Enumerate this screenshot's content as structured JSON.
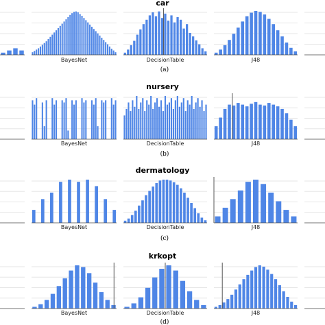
{
  "chart_data": [
    {
      "type": "bar",
      "title": "car",
      "caption": "(a)",
      "panels": [
        {
          "xlabel": "",
          "values": [
            0.05,
            0.1,
            0.15,
            0.1
          ],
          "reference_line": null,
          "partial": "left"
        },
        {
          "xlabel": "BayesNet",
          "values": [
            0.06,
            0.09,
            0.12,
            0.15,
            0.19,
            0.23,
            0.27,
            0.31,
            0.36,
            0.41,
            0.46,
            0.51,
            0.56,
            0.61,
            0.66,
            0.71,
            0.76,
            0.81,
            0.86,
            0.91,
            0.95,
            0.98,
            0.99,
            0.97,
            0.93,
            0.89,
            0.84,
            0.79,
            0.74,
            0.69,
            0.64,
            0.59,
            0.54,
            0.49,
            0.44,
            0.39,
            0.34,
            0.29,
            0.24,
            0.19,
            0.14,
            0.1,
            0.06
          ],
          "reference_line": null
        },
        {
          "xlabel": "DecisionTable",
          "values": [
            0.05,
            0.12,
            0.22,
            0.32,
            0.46,
            0.58,
            0.7,
            0.8,
            0.9,
            0.97,
            0.88,
            0.99,
            0.84,
            0.94,
            0.78,
            0.9,
            0.74,
            0.86,
            0.8,
            0.6,
            0.7,
            0.5,
            0.42,
            0.33,
            0.24,
            0.15,
            0.08
          ],
          "reference_line": 0.48
        },
        {
          "xlabel": "J48",
          "values": [
            0.05,
            0.12,
            0.22,
            0.34,
            0.48,
            0.62,
            0.76,
            0.88,
            0.96,
            1.0,
            0.98,
            0.92,
            0.82,
            0.7,
            0.56,
            0.42,
            0.28,
            0.16,
            0.08
          ],
          "reference_line": null
        },
        {
          "xlabel": "",
          "values": [],
          "reference_line": null,
          "partial": "right"
        }
      ]
    },
    {
      "type": "bar",
      "title": "nursery",
      "caption": "(b)",
      "panels": [
        {
          "xlabel": "",
          "values": [],
          "reference_line": null,
          "partial": "left"
        },
        {
          "xlabel": "BayesNet",
          "values": [
            0.9,
            0.8,
            0.95,
            0,
            0,
            0.85,
            0.3,
            0.9,
            0,
            0,
            0.95,
            0.8,
            0.9,
            0,
            0,
            0.9,
            0.85,
            0.95,
            0.2,
            0,
            0.9,
            0.8,
            0.9,
            0,
            0,
            0.95,
            0.85,
            0.9,
            0,
            0,
            0.9,
            0.8,
            0.95,
            0.3,
            0,
            0.9,
            0.85,
            0.9,
            0,
            0,
            0.95,
            0.8,
            0.9
          ],
          "reference_line": null
        },
        {
          "xlabel": "DecisionTable",
          "values": [
            0.55,
            0.7,
            0.85,
            0.65,
            0.9,
            0.75,
            1.0,
            0.7,
            0.85,
            0.95,
            0.65,
            0.9,
            0.8,
            1.0,
            0.7,
            0.85,
            0.95,
            0.75,
            0.9,
            0.65,
            1.0,
            0.8,
            0.85,
            0.95,
            0.7,
            0.9,
            1.0,
            0.75,
            0.85,
            0.95,
            0.65,
            0.9,
            0.8,
            1.0,
            0.7,
            0.85,
            0.95,
            0.75,
            0.9,
            0.65,
            0.8
          ],
          "reference_line": null
        },
        {
          "xlabel": "J48",
          "values": [
            0.3,
            0.5,
            0.7,
            0.8,
            0.78,
            0.84,
            0.8,
            0.76,
            0.82,
            0.86,
            0.8,
            0.78,
            0.84,
            0.8,
            0.76,
            0.7,
            0.6,
            0.45,
            0.3
          ],
          "reference_line": 0.22
        },
        {
          "xlabel": "",
          "values": [],
          "reference_line": null,
          "partial": "right"
        }
      ]
    },
    {
      "type": "bar",
      "title": "dermatology",
      "caption": "(c)",
      "panels": [
        {
          "xlabel": "",
          "values": [],
          "reference_line": null,
          "partial": "left"
        },
        {
          "xlabel": "BayesNet",
          "values": [
            0.3,
            0,
            0.55,
            0,
            0.7,
            0,
            0.95,
            0,
            1.0,
            0,
            0.95,
            0,
            1.0,
            0,
            0.85,
            0,
            0.55,
            0,
            0.3
          ],
          "reference_line": null
        },
        {
          "xlabel": "DecisionTable",
          "values": [
            0.05,
            0.1,
            0.18,
            0.28,
            0.4,
            0.52,
            0.64,
            0.74,
            0.84,
            0.92,
            0.98,
            1.0,
            1.0,
            0.98,
            0.94,
            0.88,
            0.8,
            0.7,
            0.58,
            0.46,
            0.34,
            0.22,
            0.12,
            0.06
          ],
          "reference_line": null
        },
        {
          "xlabel": "J48",
          "values": [
            0.15,
            0.35,
            0.55,
            0.75,
            0.95,
            1.0,
            0.9,
            0.7,
            0.5,
            0.3,
            0.15
          ],
          "reference_line": 0.0
        },
        {
          "xlabel": "",
          "values": [],
          "reference_line": null,
          "partial": "right"
        }
      ]
    },
    {
      "type": "bar",
      "title": "krkopt",
      "caption": "(d)",
      "panels": [
        {
          "xlabel": "",
          "values": [],
          "reference_line": null,
          "partial": "left"
        },
        {
          "xlabel": "BayesNet",
          "values": [
            0.04,
            0.1,
            0.2,
            0.34,
            0.52,
            0.7,
            0.88,
            1.0,
            0.96,
            0.82,
            0.6,
            0.38,
            0.2,
            0.08
          ],
          "reference_line": 0.97
        },
        {
          "xlabel": "DecisionTable",
          "values": [
            0.04,
            0.12,
            0.26,
            0.48,
            0.72,
            0.92,
            1.0,
            0.88,
            0.64,
            0.4,
            0.2,
            0.08
          ],
          "reference_line": 0.5
        },
        {
          "xlabel": "J48",
          "values": [
            0.04,
            0.08,
            0.14,
            0.22,
            0.32,
            0.44,
            0.56,
            0.68,
            0.78,
            0.88,
            0.96,
            1.0,
            0.97,
            0.9,
            0.8,
            0.68,
            0.54,
            0.4,
            0.27,
            0.16,
            0.08
          ],
          "reference_line": 0.1
        },
        {
          "xlabel": "",
          "values": [],
          "reference_line": null,
          "partial": "right"
        }
      ]
    }
  ]
}
